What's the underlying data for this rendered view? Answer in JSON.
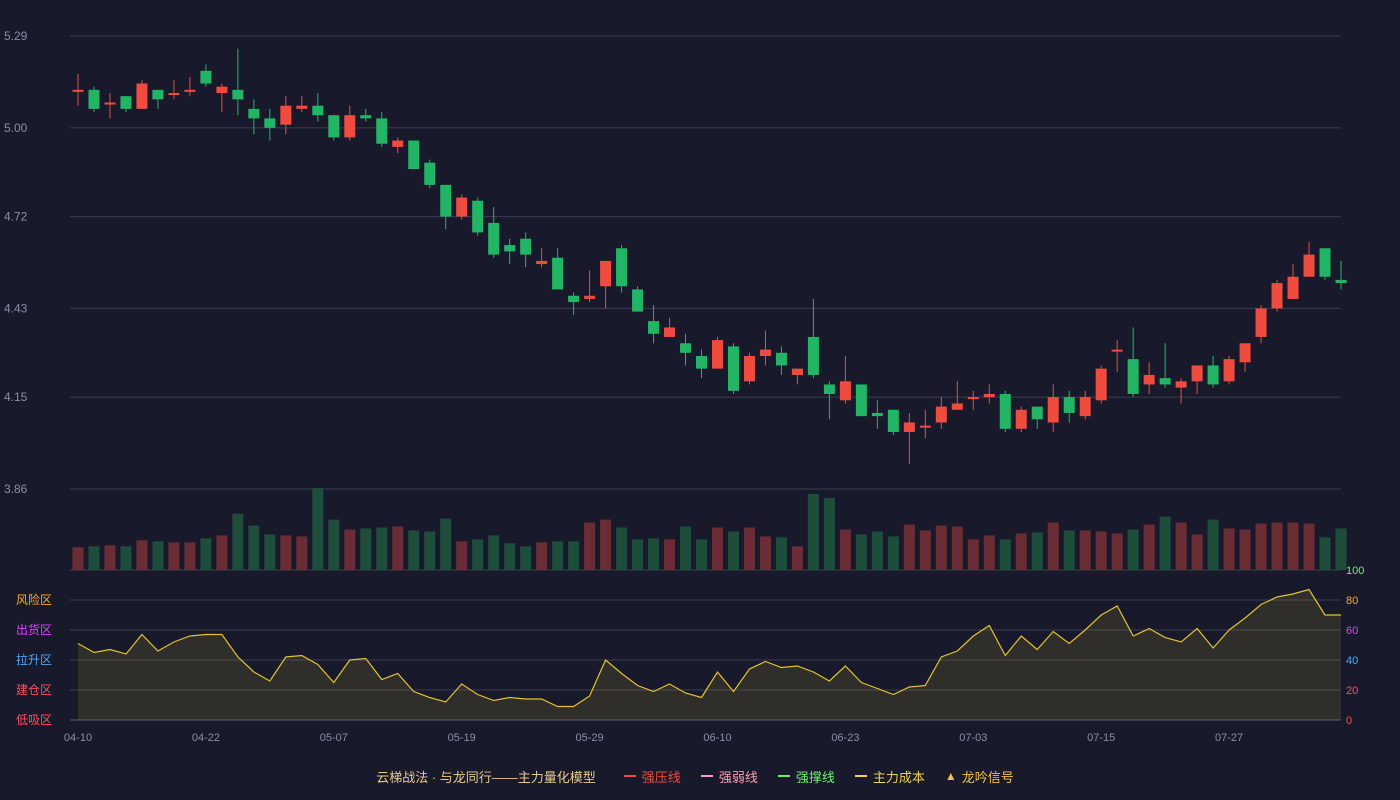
{
  "chart_data": {
    "type": "candlestick",
    "x_labels": [
      "04-10",
      "04-22",
      "05-07",
      "05-19",
      "05-29",
      "06-10",
      "06-23",
      "07-03",
      "07-15",
      "07-27"
    ],
    "x_label_index": [
      0,
      8,
      16,
      24,
      32,
      40,
      48,
      56,
      64,
      72
    ],
    "y_ticks": [
      "5.29",
      "5.00",
      "4.72",
      "4.43",
      "4.15",
      "3.86"
    ],
    "ylim": [
      3.86,
      5.29
    ],
    "candles": [
      [
        5.12,
        5.12,
        5.17,
        5.07
      ],
      [
        5.12,
        5.06,
        5.13,
        5.05
      ],
      [
        5.08,
        5.08,
        5.11,
        5.03
      ],
      [
        5.1,
        5.06,
        5.1,
        5.05
      ],
      [
        5.06,
        5.14,
        5.15,
        5.06
      ],
      [
        5.12,
        5.09,
        5.12,
        5.06
      ],
      [
        5.11,
        5.11,
        5.15,
        5.09
      ],
      [
        5.12,
        5.12,
        5.16,
        5.1
      ],
      [
        5.18,
        5.14,
        5.2,
        5.13
      ],
      [
        5.11,
        5.13,
        5.14,
        5.05
      ],
      [
        5.12,
        5.09,
        5.25,
        5.04
      ],
      [
        5.06,
        5.03,
        5.09,
        4.98
      ],
      [
        5.03,
        5.0,
        5.06,
        4.96
      ],
      [
        5.01,
        5.07,
        5.1,
        4.98
      ],
      [
        5.06,
        5.07,
        5.1,
        5.05
      ],
      [
        5.07,
        5.04,
        5.11,
        5.02
      ],
      [
        5.04,
        4.97,
        5.04,
        4.96
      ],
      [
        4.97,
        5.04,
        5.07,
        4.96
      ],
      [
        5.04,
        5.03,
        5.06,
        5.02
      ],
      [
        5.03,
        4.95,
        5.05,
        4.94
      ],
      [
        4.94,
        4.96,
        4.97,
        4.92
      ],
      [
        4.96,
        4.87,
        4.96,
        4.87
      ],
      [
        4.89,
        4.82,
        4.9,
        4.81
      ],
      [
        4.82,
        4.72,
        4.82,
        4.68
      ],
      [
        4.72,
        4.78,
        4.79,
        4.71
      ],
      [
        4.77,
        4.67,
        4.78,
        4.66
      ],
      [
        4.7,
        4.6,
        4.75,
        4.59
      ],
      [
        4.63,
        4.61,
        4.65,
        4.57
      ],
      [
        4.65,
        4.6,
        4.67,
        4.56
      ],
      [
        4.57,
        4.58,
        4.62,
        4.56
      ],
      [
        4.59,
        4.49,
        4.62,
        4.49
      ],
      [
        4.47,
        4.45,
        4.48,
        4.41
      ],
      [
        4.46,
        4.47,
        4.55,
        4.45
      ],
      [
        4.5,
        4.58,
        4.58,
        4.43
      ],
      [
        4.62,
        4.5,
        4.63,
        4.48
      ],
      [
        4.49,
        4.42,
        4.5,
        4.42
      ],
      [
        4.39,
        4.35,
        4.44,
        4.32
      ],
      [
        4.34,
        4.37,
        4.4,
        4.34
      ],
      [
        4.32,
        4.29,
        4.35,
        4.25
      ],
      [
        4.28,
        4.24,
        4.3,
        4.21
      ],
      [
        4.24,
        4.33,
        4.34,
        4.24
      ],
      [
        4.31,
        4.17,
        4.32,
        4.16
      ],
      [
        4.2,
        4.28,
        4.29,
        4.19
      ],
      [
        4.28,
        4.3,
        4.36,
        4.25
      ],
      [
        4.29,
        4.25,
        4.31,
        4.22
      ],
      [
        4.22,
        4.24,
        4.24,
        4.19
      ],
      [
        4.34,
        4.22,
        4.46,
        4.21
      ],
      [
        4.19,
        4.16,
        4.2,
        4.08
      ],
      [
        4.14,
        4.2,
        4.28,
        4.13
      ],
      [
        4.19,
        4.09,
        4.19,
        4.09
      ],
      [
        4.1,
        4.09,
        4.14,
        4.05
      ],
      [
        4.11,
        4.04,
        4.11,
        4.03
      ],
      [
        4.04,
        4.07,
        4.1,
        3.94
      ],
      [
        4.06,
        4.06,
        4.11,
        4.02
      ],
      [
        4.07,
        4.12,
        4.15,
        4.05
      ],
      [
        4.11,
        4.13,
        4.2,
        4.11
      ],
      [
        4.15,
        4.15,
        4.17,
        4.11
      ],
      [
        4.15,
        4.16,
        4.19,
        4.13
      ],
      [
        4.16,
        4.05,
        4.17,
        4.04
      ],
      [
        4.05,
        4.11,
        4.12,
        4.04
      ],
      [
        4.12,
        4.08,
        4.12,
        4.05
      ],
      [
        4.07,
        4.15,
        4.19,
        4.04
      ],
      [
        4.15,
        4.1,
        4.17,
        4.07
      ],
      [
        4.09,
        4.15,
        4.17,
        4.08
      ],
      [
        4.14,
        4.24,
        4.25,
        4.13
      ],
      [
        4.3,
        4.3,
        4.33,
        4.23
      ],
      [
        4.27,
        4.16,
        4.37,
        4.15
      ],
      [
        4.19,
        4.22,
        4.26,
        4.16
      ],
      [
        4.21,
        4.19,
        4.32,
        4.18
      ],
      [
        4.18,
        4.2,
        4.21,
        4.13
      ],
      [
        4.2,
        4.25,
        4.25,
        4.16
      ],
      [
        4.25,
        4.19,
        4.28,
        4.18
      ],
      [
        4.2,
        4.27,
        4.28,
        4.19
      ],
      [
        4.26,
        4.32,
        4.32,
        4.23
      ],
      [
        4.34,
        4.43,
        4.44,
        4.32
      ],
      [
        4.43,
        4.51,
        4.52,
        4.42
      ],
      [
        4.46,
        4.53,
        4.57,
        4.46
      ],
      [
        4.53,
        4.6,
        4.64,
        4.53
      ],
      [
        4.62,
        4.53,
        4.62,
        4.52
      ],
      [
        4.52,
        4.51,
        4.58,
        4.49
      ]
    ],
    "volume": [
      23,
      24,
      25,
      24,
      30,
      29,
      28,
      28,
      32,
      35,
      57,
      45,
      36,
      35,
      34,
      83,
      51,
      41,
      42,
      43,
      44,
      40,
      39,
      52,
      29,
      31,
      35,
      27,
      24,
      28,
      29,
      29,
      48,
      51,
      43,
      31,
      32,
      31,
      44,
      31,
      43,
      39,
      43,
      34,
      33,
      24,
      77,
      73,
      41,
      36,
      39,
      34,
      46,
      40,
      45,
      44,
      31,
      35,
      31,
      37,
      38,
      48,
      40,
      40,
      39,
      37,
      41,
      46,
      54,
      48,
      36,
      51,
      42,
      41,
      47,
      48,
      48,
      47,
      33,
      42
    ],
    "indicator": {
      "y_ticks": [
        "0",
        "20",
        "40",
        "60",
        "80",
        "100"
      ],
      "ylim": [
        0,
        100
      ],
      "zones": [
        "低吸区",
        "建仓区",
        "拉升区",
        "出货区",
        "风险区"
      ],
      "values": [
        51,
        45,
        47,
        44,
        57,
        46,
        52,
        56,
        57,
        57,
        42,
        32,
        26,
        42,
        43,
        37,
        25,
        40,
        41,
        27,
        31,
        19,
        15,
        12,
        24,
        17,
        13,
        15,
        14,
        14,
        9,
        9,
        16,
        40,
        31,
        23,
        19,
        24,
        18,
        15,
        32,
        19,
        34,
        39,
        35,
        36,
        32,
        26,
        36,
        25,
        21,
        17,
        22,
        23,
        42,
        46,
        56,
        63,
        43,
        56,
        47,
        59,
        51,
        60,
        70,
        76,
        56,
        61,
        55,
        52,
        61,
        48,
        60,
        68,
        77,
        82,
        84,
        87,
        70,
        70
      ]
    },
    "legend": {
      "title": "云梯战法 · 与龙同行——主力量化模型",
      "items": [
        {
          "name": "强压线",
          "color": "#ef4b3f",
          "style": "solid"
        },
        {
          "name": "强弱线",
          "color": "#ff9fb0",
          "style": "dashed"
        },
        {
          "name": "强撑线",
          "color": "#6cf06c",
          "style": "solid"
        },
        {
          "name": "主力成本",
          "color": "#f2d24a",
          "style": "dashed"
        },
        {
          "name": "龙吟信号",
          "color": "#f2c14a",
          "style": "triangle"
        }
      ]
    }
  },
  "colors": {
    "up": "#ef4b3f",
    "down": "#22b566",
    "volume_up": "#6b2d35",
    "volume_down": "#1f4d3b",
    "indicator_line": "#e2c230",
    "grid": "#3a3d4f"
  }
}
